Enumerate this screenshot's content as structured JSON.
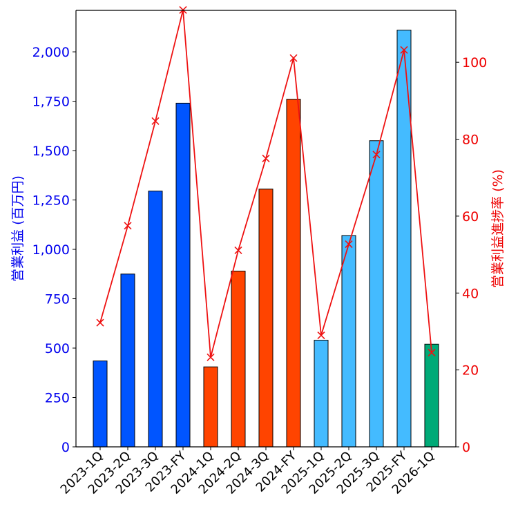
{
  "chart_data": {
    "type": "bar",
    "categories": [
      "2023-1Q",
      "2023-2Q",
      "2023-3Q",
      "2023-FY",
      "2024-1Q",
      "2024-2Q",
      "2024-3Q",
      "2024-FY",
      "2025-1Q",
      "2025-2Q",
      "2025-3Q",
      "2025-FY",
      "2026-1Q"
    ],
    "ylabel": "営業利益 (百万円)",
    "ylim": [
      0,
      2210
    ],
    "yticks": [
      0,
      250,
      500,
      750,
      1000,
      1250,
      1500,
      1750,
      2000
    ],
    "ytick_labels": [
      "0",
      "250",
      "500",
      "750",
      "1,000",
      "1,250",
      "1,500",
      "1,750",
      "2,000"
    ],
    "y2label": "営業利益進捗率 (%)",
    "y2lim": [
      0,
      113.5
    ],
    "y2ticks": [
      0,
      20,
      40,
      60,
      80,
      100
    ],
    "y2tick_labels": [
      "0",
      "20",
      "40",
      "60",
      "80",
      "100"
    ],
    "series": [
      {
        "name": "営業利益",
        "kind": "bar",
        "axis": "left",
        "values": [
          435,
          875,
          1295,
          1740,
          405,
          890,
          1305,
          1760,
          540,
          1070,
          1550,
          2110,
          520
        ],
        "colors": [
          "#0055ff",
          "#0055ff",
          "#0055ff",
          "#0055ff",
          "#ff4400",
          "#ff4400",
          "#ff4400",
          "#ff4400",
          "#44bbff",
          "#44bbff",
          "#44bbff",
          "#44bbff",
          "#00aa77"
        ]
      },
      {
        "name": "営業利益進捗率",
        "kind": "line",
        "axis": "right",
        "color": "#ee1111",
        "marker": "x",
        "values": [
          32.3,
          57.5,
          84.7,
          113.6,
          23.3,
          51.1,
          75.0,
          101.1,
          29.0,
          52.7,
          76.0,
          103.2,
          24.5
        ]
      }
    ],
    "grid": false,
    "legend": "none"
  }
}
